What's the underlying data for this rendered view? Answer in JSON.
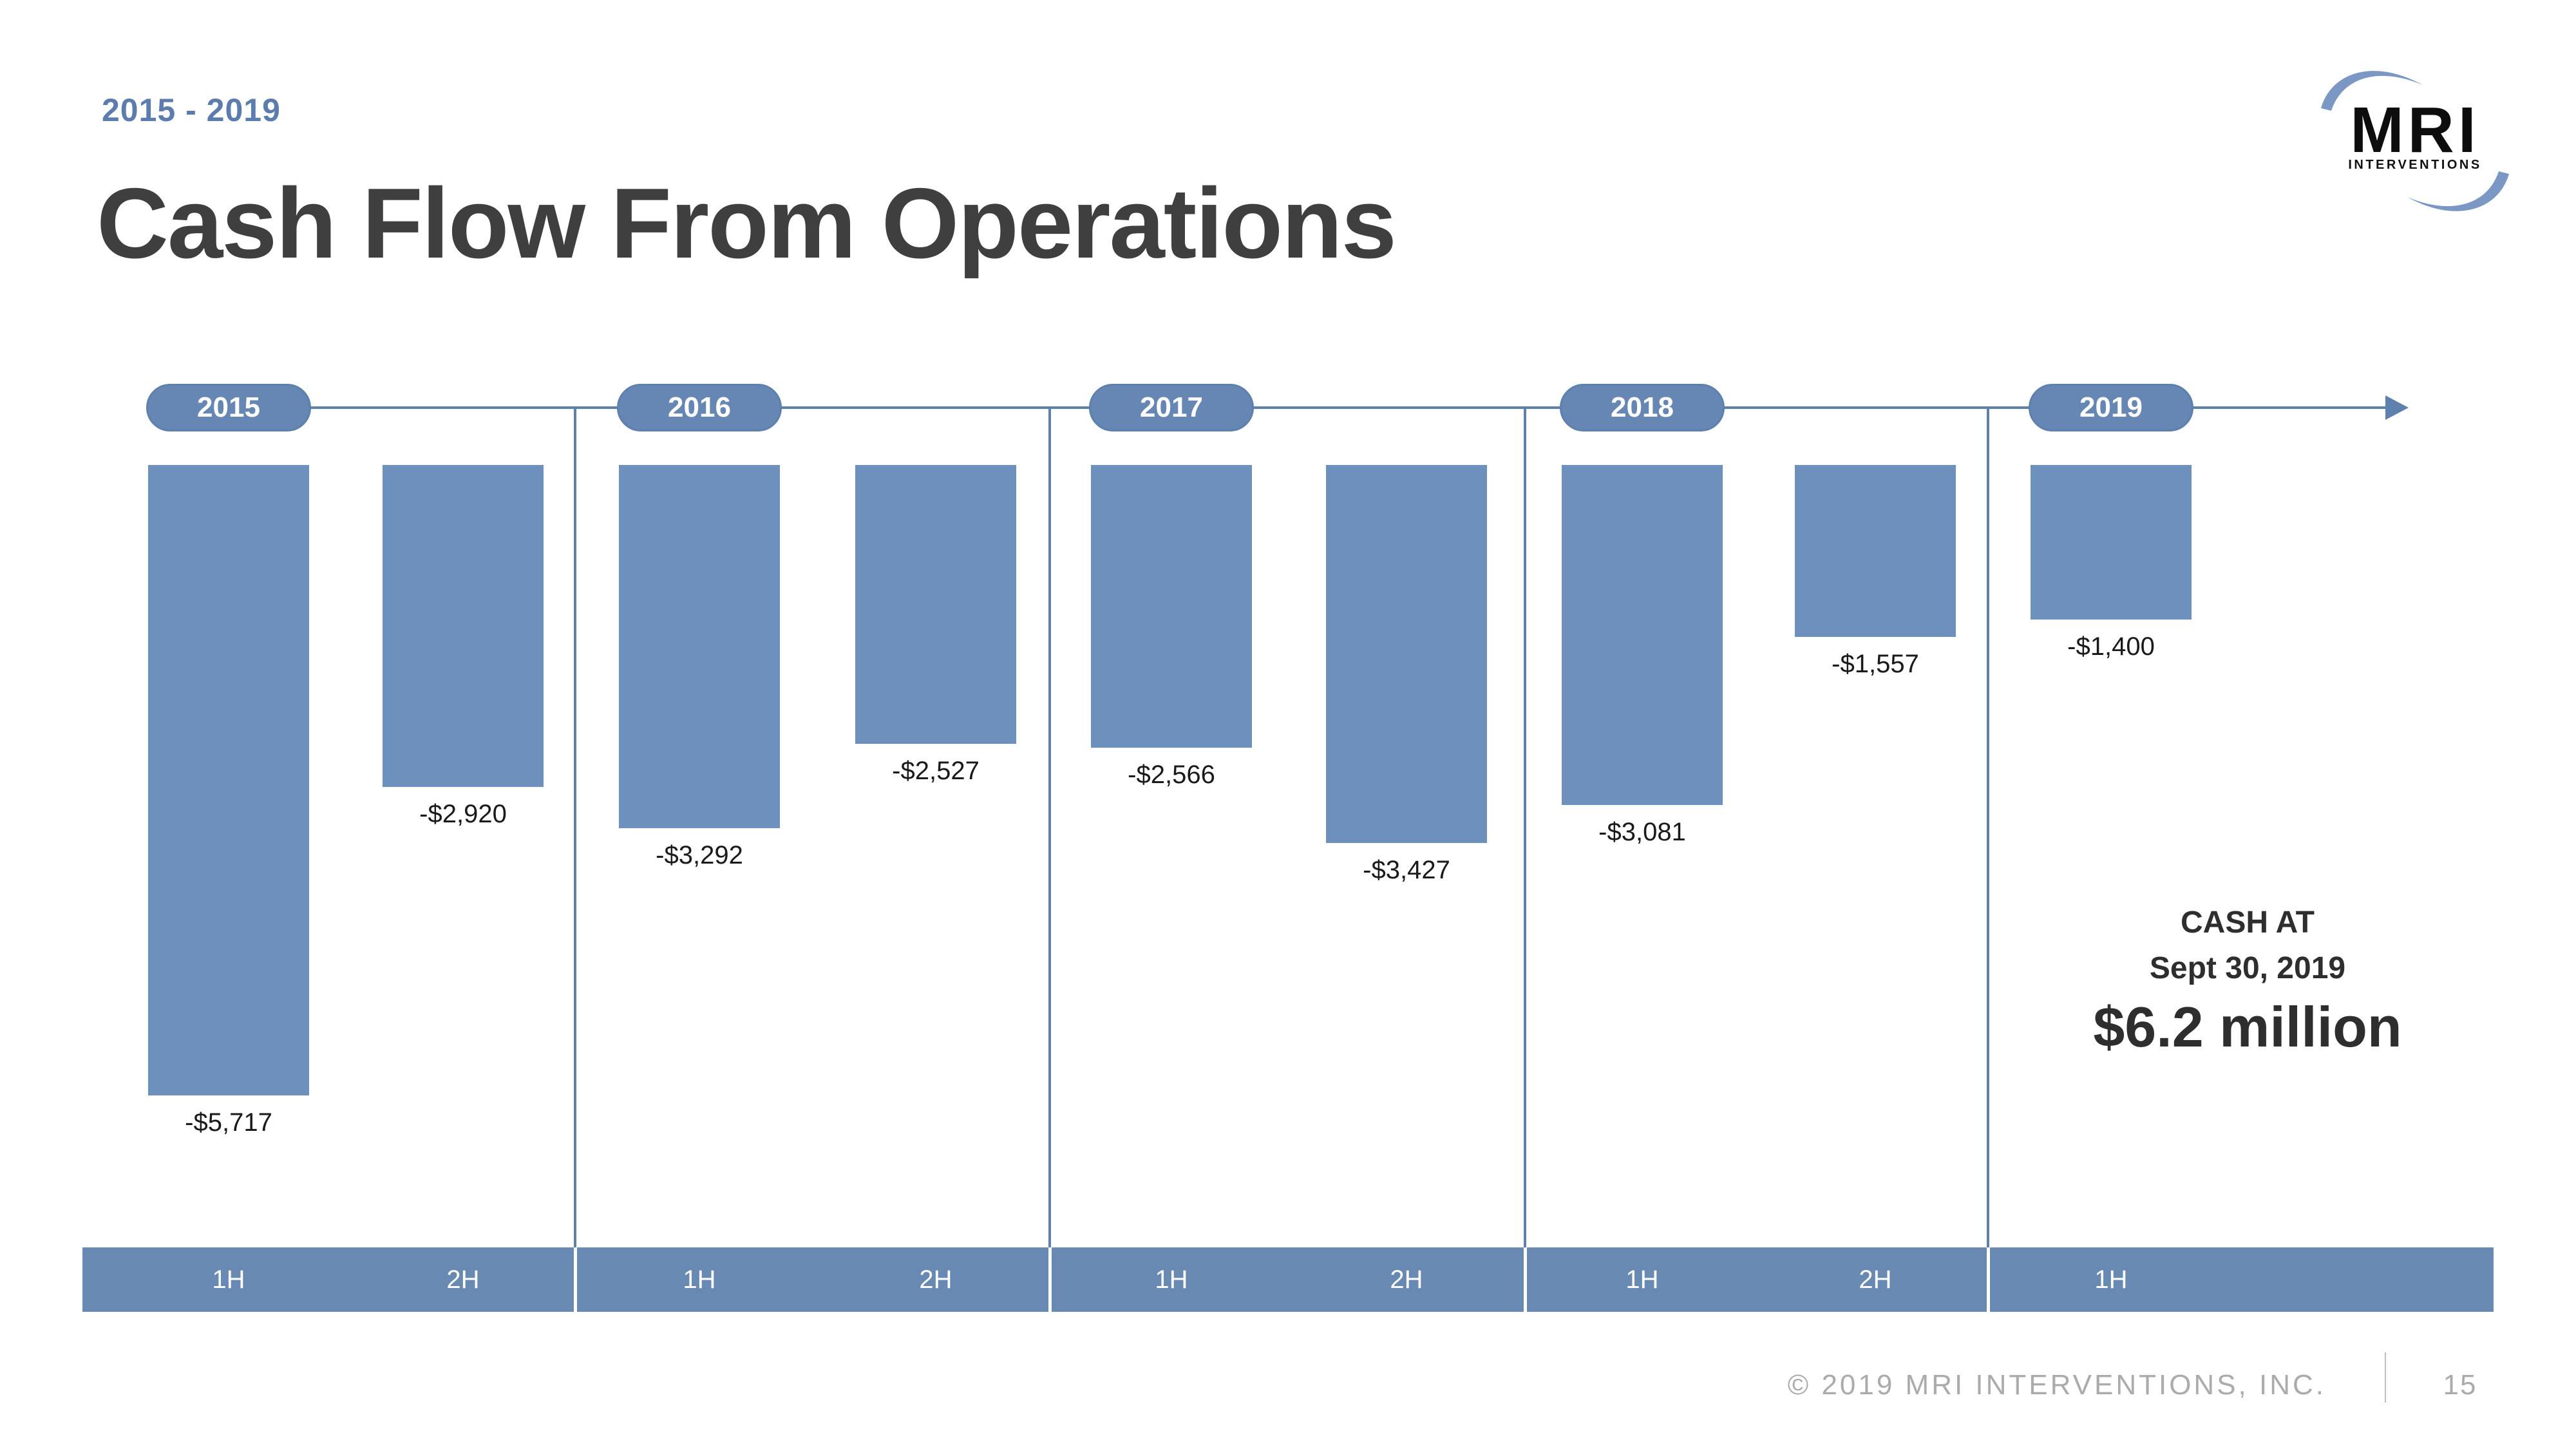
{
  "slide": {
    "date_range": "2015 - 2019",
    "title": "Cash Flow From Operations",
    "logo": {
      "brand": "MRI",
      "subtext": "INTERVENTIONS"
    },
    "footer": {
      "copyright": "© 2019 MRI INTERVENTIONS, INC.",
      "page_number": "15"
    }
  },
  "colors": {
    "accent_steel_blue": "#6E90BC",
    "pill_fill": "#6687B3",
    "axis_line": "#5E80AC",
    "band_fill": "#688AB2",
    "subtitle_text": "#5B7CAC",
    "title_text": "#3F3F3F",
    "footer_text": "#ABABAB",
    "logo_swoosh": "#7B98C5",
    "value_label_text": "#1A1A1A",
    "annotation_text": "#2E2E2E"
  },
  "chart_data": {
    "type": "bar",
    "orientation": "vertical-negative",
    "baseline": 0,
    "ylim": [
      -6000,
      0
    ],
    "value_unit": "USD thousands",
    "grid": false,
    "legend": "none",
    "timeline_arrow": true,
    "groups": [
      {
        "year": "2015",
        "bars": [
          {
            "period": "1H",
            "value": -5717,
            "label": "-$5,717"
          },
          {
            "period": "2H",
            "value": -2920,
            "label": "-$2,920"
          }
        ]
      },
      {
        "year": "2016",
        "bars": [
          {
            "period": "1H",
            "value": -3292,
            "label": "-$3,292"
          },
          {
            "period": "2H",
            "value": -2527,
            "label": "-$2,527"
          }
        ]
      },
      {
        "year": "2017",
        "bars": [
          {
            "period": "1H",
            "value": -2566,
            "label": "-$2,566"
          },
          {
            "period": "2H",
            "value": -3427,
            "label": "-$3,427"
          }
        ]
      },
      {
        "year": "2018",
        "bars": [
          {
            "period": "1H",
            "value": -3081,
            "label": "-$3,081"
          },
          {
            "period": "2H",
            "value": -1557,
            "label": "-$1,557"
          }
        ]
      },
      {
        "year": "2019",
        "bars": [
          {
            "period": "1H",
            "value": -1400,
            "label": "-$1,400"
          }
        ]
      }
    ],
    "annotation": {
      "line1": "CASH AT",
      "line2": "Sept 30, 2019",
      "line3": "$6.2 million"
    }
  }
}
